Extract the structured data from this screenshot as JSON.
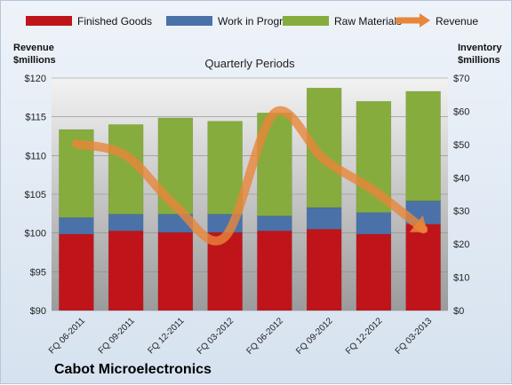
{
  "company": "Cabot Microelectronics",
  "colors": {
    "finished_goods": "#c0141b",
    "work_in_progress": "#4a72a8",
    "raw_materials": "#86ac3d",
    "revenue": "#e8863a"
  },
  "chart_data": {
    "type": "bar",
    "subtitle": "Quarterly Periods",
    "categories": [
      "FQ 06-2011",
      "FQ 09-2011",
      "FQ 12-2011",
      "FQ 03-2012",
      "FQ 06-2012",
      "FQ 09-2012",
      "FQ 12-2012",
      "FQ 03-2013"
    ],
    "series": [
      {
        "name": "Finished Goods",
        "axis": "right",
        "stack": "inventory",
        "values": [
          23,
          24,
          23.5,
          23.5,
          24,
          24.5,
          23,
          26
        ]
      },
      {
        "name": "Work in Progress",
        "axis": "right",
        "stack": "inventory",
        "values": [
          5,
          5,
          5.5,
          5.5,
          4.5,
          6.5,
          6.5,
          7
        ]
      },
      {
        "name": "Raw Materials",
        "axis": "right",
        "stack": "inventory",
        "values": [
          26.5,
          27,
          29,
          28,
          31,
          36,
          33.5,
          33
        ]
      },
      {
        "name": "Revenue",
        "axis": "left",
        "type": "line",
        "values": [
          111.5,
          110,
          103.5,
          99.5,
          115.5,
          109.5,
          105.5,
          100.5
        ]
      }
    ],
    "left_axis": {
      "label_line1": "Revenue",
      "label_line2": "$millions",
      "ticks": [
        "$90",
        "$95",
        "$100",
        "$105",
        "$110",
        "$115",
        "$120"
      ],
      "ylim": [
        90,
        120
      ]
    },
    "right_axis": {
      "label_line1": "Inventory",
      "label_line2": "$millions",
      "ticks": [
        "$0",
        "$10",
        "$20",
        "$30",
        "$40",
        "$50",
        "$60",
        "$70"
      ],
      "ylim": [
        0,
        70
      ]
    },
    "legend": "top",
    "grid": true
  }
}
